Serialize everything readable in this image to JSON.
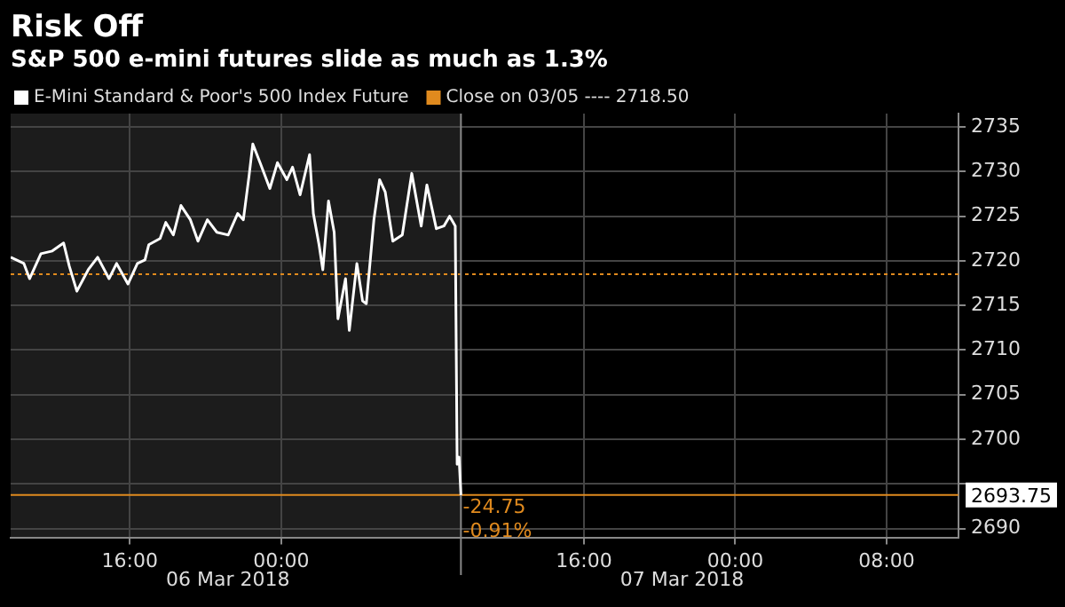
{
  "chart_data": {
    "type": "line",
    "title": "Risk Off",
    "subtitle": "S&P 500 e-mini futures slide as much as 1.3%",
    "x": [
      "2018-03-05T09:42",
      "2018-03-05T10:24",
      "2018-03-05T10:42",
      "2018-03-05T11:18",
      "2018-03-05T11:54",
      "2018-03-05T12:30",
      "2018-03-05T12:48",
      "2018-03-05T13:12",
      "2018-03-05T13:48",
      "2018-03-05T14:18",
      "2018-03-05T14:54",
      "2018-03-05T15:18",
      "2018-03-05T15:54",
      "2018-03-05T16:24",
      "2018-03-05T16:48",
      "2018-03-05T17:00",
      "2018-03-05T17:36",
      "2018-03-05T17:54",
      "2018-03-05T18:18",
      "2018-03-05T18:42",
      "2018-03-05T19:12",
      "2018-03-05T19:36",
      "2018-03-05T20:06",
      "2018-03-05T20:36",
      "2018-03-05T21:12",
      "2018-03-05T21:42",
      "2018-03-05T22:00",
      "2018-03-05T22:18",
      "2018-03-05T22:30",
      "2018-03-05T22:54",
      "2018-03-05T23:24",
      "2018-03-05T23:48",
      "2018-03-06T00:18",
      "2018-03-06T00:36",
      "2018-03-06T01:00",
      "2018-03-06T01:30",
      "2018-03-06T01:42",
      "2018-03-06T02:00",
      "2018-03-06T02:12",
      "2018-03-06T02:30",
      "2018-03-06T02:48",
      "2018-03-06T03:00",
      "2018-03-06T03:24",
      "2018-03-06T03:36",
      "2018-03-06T04:00",
      "2018-03-06T04:18",
      "2018-03-06T04:30",
      "2018-03-06T04:54",
      "2018-03-06T05:12",
      "2018-03-06T05:30",
      "2018-03-06T05:54",
      "2018-03-06T06:24",
      "2018-03-06T06:54",
      "2018-03-06T07:24",
      "2018-03-06T07:42",
      "2018-03-06T08:12",
      "2018-03-06T08:36",
      "2018-03-06T08:54",
      "2018-03-06T09:12",
      "2018-03-06T09:18",
      "2018-03-06T09:24",
      "2018-03-06T09:30"
    ],
    "series": [
      {
        "name": "E-Mini Standard & Poor's 500 Index Future",
        "color": "#ffffff",
        "values": [
          2720.4,
          2719.7,
          2718.0,
          2720.8,
          2721.1,
          2722.0,
          2719.4,
          2716.6,
          2719.0,
          2720.4,
          2718.0,
          2719.7,
          2717.4,
          2719.7,
          2720.1,
          2721.8,
          2722.5,
          2724.3,
          2722.9,
          2726.2,
          2724.6,
          2722.2,
          2724.6,
          2723.2,
          2722.9,
          2725.3,
          2724.6,
          2729.5,
          2733.1,
          2730.9,
          2728.1,
          2731.0,
          2729.1,
          2730.5,
          2727.4,
          2731.9,
          2725.3,
          2721.8,
          2719.0,
          2726.7,
          2723.2,
          2713.5,
          2718.0,
          2712.2,
          2719.7,
          2715.5,
          2715.2,
          2724.6,
          2729.1,
          2727.7,
          2722.2,
          2722.9,
          2729.8,
          2723.9,
          2728.5,
          2723.6,
          2723.9,
          2725.0,
          2723.9,
          2697.2,
          2698.0,
          2693.75
        ]
      }
    ],
    "xlim": [
      "2018-03-05T09:42",
      "2018-03-07T11:48"
    ],
    "xticks": [
      {
        "value": "2018-03-05T16:00",
        "label": "16:00"
      },
      {
        "value": "2018-03-06T00:00",
        "label": "00:00"
      },
      {
        "value": "2018-03-06T16:00",
        "label": "16:00"
      },
      {
        "value": "2018-03-07T00:00",
        "label": "00:00"
      },
      {
        "value": "2018-03-07T08:00",
        "label": "08:00"
      }
    ],
    "ylim": [
      2689,
      2736.5
    ],
    "yticks": [
      2690,
      {
        "value": 2695,
        "label": null
      },
      2700,
      2705,
      2710,
      2715,
      2720,
      2725,
      2730,
      2735
    ],
    "grid": true,
    "legend": "top left",
    "ref_lines": [
      {
        "axis": "y",
        "value": 2718.5,
        "label": "Close on 03/05 ---- 2718.50",
        "color": "#e08a1e",
        "line_style": "dotted"
      },
      {
        "axis": "y",
        "value": 2693.75,
        "label": "2693.75",
        "color": "#e08a1e",
        "line_style": "solid"
      },
      {
        "axis": "x",
        "value": "2018-03-06T09:30",
        "color": "#888888",
        "line_style": "solid"
      }
    ],
    "bands": [
      {
        "axis": "x",
        "from": "2018-03-05T09:42",
        "to": "2018-03-06T09:30",
        "color": "#1c1c1c"
      }
    ],
    "annotations": [
      {
        "text": "-24.75",
        "x": "2018-03-06T09:36",
        "y": 2692.3
      },
      {
        "text": "-0.91%",
        "x": "2018-03-06T09:36",
        "y": 2689.6
      },
      "06 Mar 2018",
      "07 Mar 2018"
    ]
  }
}
